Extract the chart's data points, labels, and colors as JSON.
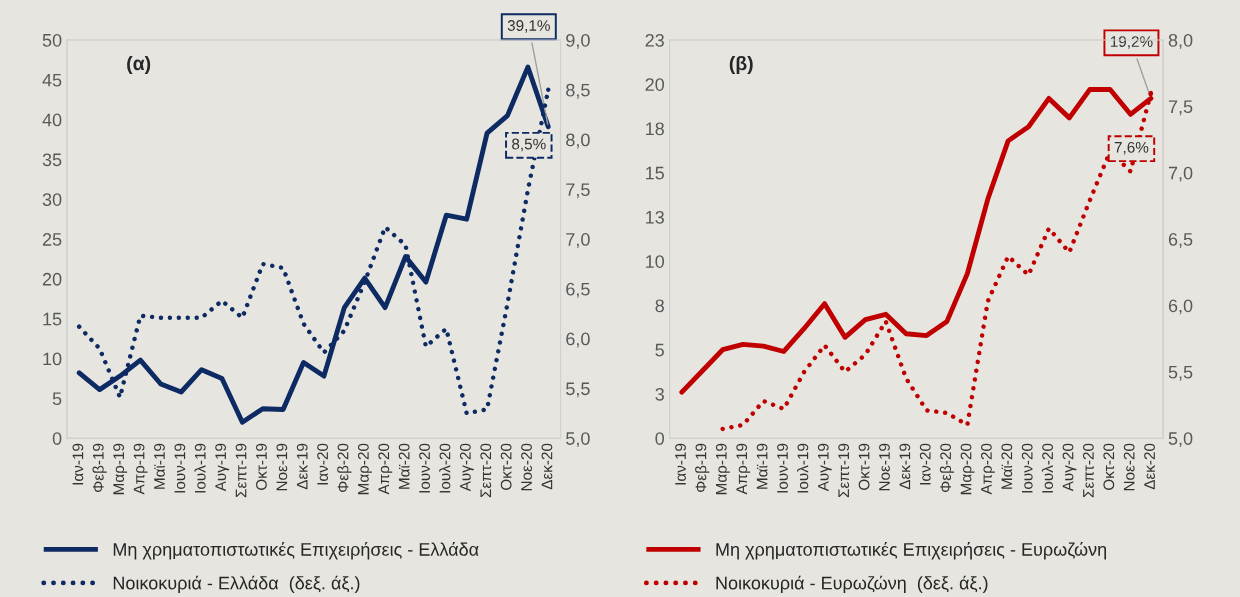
{
  "chart_data": [
    {
      "type": "line",
      "title": "(α)",
      "categories": [
        "Ιαν-19",
        "Φεβ-19",
        "Μαρ-19",
        "Απρ-19",
        "Μαϊ-19",
        "Ιουν-19",
        "Ιουλ-19",
        "Αυγ-19",
        "Σεπτ-19",
        "Οκτ-19",
        "Νοε-19",
        "Δεκ-19",
        "Ιαν-20",
        "Φεβ-20",
        "Μαρ-20",
        "Απρ-20",
        "Μαϊ-20",
        "Ιουν-20",
        "Ιουλ-20",
        "Αυγ-20",
        "Σεπτ-20",
        "Οκτ-20",
        "Νοε-20",
        "Δεκ-20"
      ],
      "series": [
        {
          "name": "Μη χρηματοπιστωτικές Επιχειρήσεις - Ελλάδα",
          "color": "#0d2a63",
          "line_style": "solid",
          "values": [
            8.2,
            6.1,
            7.8,
            9.8,
            6.8,
            5.8,
            8.6,
            7.5,
            2.0,
            3.7,
            3.6,
            9.5,
            7.8,
            16.4,
            20.1,
            16.4,
            22.8,
            19.6,
            28.0,
            27.5,
            38.3,
            40.5,
            46.6,
            39.1
          ]
        },
        {
          "name": "Νοικοκυριά - Ελλάδα  (δεξ. άξ.)",
          "color": "#0d2a63",
          "line_style": "dotted",
          "axis": "y2",
          "values": [
            6.12,
            5.9,
            5.41,
            6.23,
            6.21,
            6.21,
            6.21,
            6.38,
            6.21,
            6.75,
            6.71,
            6.15,
            5.86,
            6.08,
            6.57,
            7.12,
            6.94,
            5.92,
            6.1,
            5.25,
            5.29,
            6.35,
            7.49,
            8.5
          ]
        }
      ],
      "ylim": [
        0,
        50
      ],
      "yticks": [
        0,
        5,
        10,
        15,
        20,
        25,
        30,
        35,
        40,
        45,
        50
      ],
      "y2lim": [
        5,
        9
      ],
      "y2ticks": [
        {
          "value": 5,
          "label": "5,0"
        },
        {
          "value": 5.5,
          "label": "5,5"
        },
        {
          "value": 6,
          "label": "6,0"
        },
        {
          "value": 6.5,
          "label": "6,5"
        },
        {
          "value": 7,
          "label": "7,0"
        },
        {
          "value": 7.5,
          "label": "7,5"
        },
        {
          "value": 8,
          "label": "8,0"
        },
        {
          "value": 8.5,
          "label": "8,5"
        },
        {
          "value": 9,
          "label": "9,0"
        }
      ],
      "annotations": [
        {
          "text": "39,1%",
          "x": "Δεκ-20",
          "y": 39.1
        },
        "8,5%"
      ],
      "legend": "bottom",
      "grid": false
    },
    {
      "type": "line",
      "title": "(β)",
      "categories": [
        "Ιαν-19",
        "Φεβ-19",
        "Μαρ-19",
        "Απρ-19",
        "Μαϊ-19",
        "Ιουν-19",
        "Ιουλ-19",
        "Αυγ-19",
        "Σεπτ-19",
        "Οκτ-19",
        "Νοε-19",
        "Δεκ-19",
        "Ιαν-20",
        "Φεβ-20",
        "Μαρ-20",
        "Απρ-20",
        "Μαϊ-20",
        "Ιουν-20",
        "Ιουλ-20",
        "Αυγ-20",
        "Σεπτ-20",
        "Οκτ-20",
        "Νοε-20",
        "Δεκ-20"
      ],
      "series": [
        {
          "name": "Μη χρηματοπιστωτικές Επιχειρήσεις - Ευρωζώνη",
          "color": "#c00000",
          "line_style": "solid",
          "values": [
            2.6,
            3.8,
            5.0,
            5.3,
            5.2,
            4.9,
            6.2,
            7.6,
            5.7,
            6.7,
            7.0,
            5.9,
            5.8,
            6.6,
            9.3,
            13.5,
            16.8,
            17.6,
            19.2,
            18.1,
            19.7,
            19.7,
            18.3,
            19.2
          ]
        },
        {
          "name": "Νοικοκυριά - Ευρωζώνη  (δεξ. άξ.)",
          "color": "#c00000",
          "line_style": "dotted",
          "axis": "y2",
          "values": [
            null,
            null,
            5.07,
            5.1,
            5.28,
            5.22,
            5.5,
            5.7,
            5.5,
            5.63,
            5.88,
            5.45,
            5.21,
            5.19,
            5.1,
            6.03,
            6.37,
            6.23,
            6.58,
            6.4,
            6.79,
            7.16,
            7.01,
            7.6
          ]
        }
      ],
      "ylim": [
        0,
        22.5
      ],
      "yticks": [
        0,
        {
          "value": 2.5,
          "label": "3"
        },
        5,
        {
          "value": 7.5,
          "label": "8"
        },
        10,
        {
          "value": 12.5,
          "label": "13"
        },
        15,
        {
          "value": 17.5,
          "label": "18"
        },
        20,
        {
          "value": 22.5,
          "label": "23"
        }
      ],
      "y2lim": [
        5,
        8
      ],
      "y2ticks": [
        {
          "value": 5,
          "label": "5,0"
        },
        {
          "value": 5.5,
          "label": "5,5"
        },
        {
          "value": 6,
          "label": "6,0"
        },
        {
          "value": 6.5,
          "label": "6,5"
        },
        {
          "value": 7,
          "label": "7,0"
        },
        {
          "value": 7.5,
          "label": "7,5"
        },
        {
          "value": 8,
          "label": "8,0"
        }
      ],
      "annotations": [
        {
          "text": "19,2%",
          "x": "Δεκ-20",
          "y": 19.2
        },
        "7,6%"
      ],
      "legend": "bottom",
      "grid": false
    }
  ]
}
